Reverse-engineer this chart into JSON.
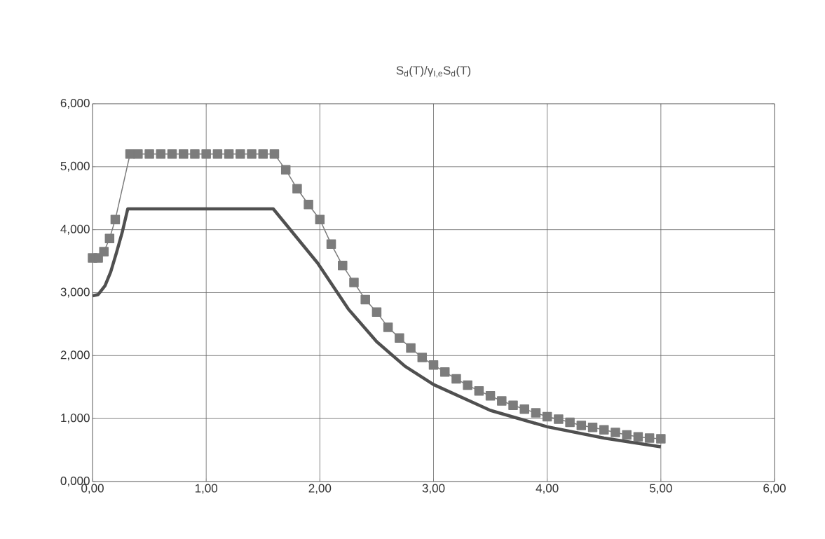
{
  "chart_data": {
    "type": "line",
    "title": "S$_{d}$(T)/γ$_{I,e}$S$_{d}$(T)",
    "xlim": [
      0,
      6
    ],
    "ylim": [
      0,
      6
    ],
    "xticks": [
      {
        "value": 0,
        "label": "0,00"
      },
      {
        "value": 1,
        "label": "1,00"
      },
      {
        "value": 2,
        "label": "2,00"
      },
      {
        "value": 3,
        "label": "3,00"
      },
      {
        "value": 4,
        "label": "4,00"
      },
      {
        "value": 5,
        "label": "5,00"
      },
      {
        "value": 6,
        "label": "6,00"
      }
    ],
    "yticks": [
      {
        "value": 0,
        "label": "0,000"
      },
      {
        "value": 1,
        "label": "1,000"
      },
      {
        "value": 2,
        "label": "2,000"
      },
      {
        "value": 3,
        "label": "3,000"
      },
      {
        "value": 4,
        "label": "4,000"
      },
      {
        "value": 5,
        "label": "5,000"
      },
      {
        "value": 6,
        "label": "6,000"
      }
    ],
    "grid": true,
    "series": [
      {
        "color": "#7c7c7c",
        "marker": "square",
        "x": [
          0,
          0.05,
          0.1,
          0.15,
          0.2,
          0.33,
          0.4,
          0.5,
          0.6,
          0.7,
          0.8,
          0.9,
          1.0,
          1.1,
          1.2,
          1.3,
          1.4,
          1.5,
          1.6,
          1.7,
          1.8,
          1.9,
          2.0,
          2.1,
          2.2,
          2.3,
          2.4,
          2.5,
          2.6,
          2.7,
          2.8,
          2.9,
          3.0,
          3.1,
          3.2,
          3.3,
          3.4,
          3.5,
          3.6,
          3.7,
          3.8,
          3.9,
          4.0,
          4.1,
          4.2,
          4.3,
          4.4,
          4.5,
          4.6,
          4.7,
          4.8,
          4.9,
          5.0
        ],
        "values": [
          3.55,
          3.55,
          3.65,
          3.86,
          4.16,
          5.2,
          5.2,
          5.2,
          5.2,
          5.2,
          5.2,
          5.2,
          5.2,
          5.2,
          5.2,
          5.2,
          5.2,
          5.2,
          5.2,
          4.95,
          4.65,
          4.4,
          4.16,
          3.77,
          3.43,
          3.16,
          2.89,
          2.69,
          2.45,
          2.28,
          2.12,
          1.97,
          1.85,
          1.74,
          1.63,
          1.53,
          1.44,
          1.36,
          1.28,
          1.21,
          1.15,
          1.09,
          1.03,
          0.99,
          0.94,
          0.89,
          0.86,
          0.82,
          0.78,
          0.74,
          0.71,
          0.69,
          0.68
        ]
      },
      {
        "color": "#505050",
        "marker": "none",
        "x": [
          0,
          0.05,
          0.11,
          0.16,
          0.21,
          0.26,
          0.31,
          1.59,
          1.98,
          2.25,
          2.5,
          2.75,
          3.0,
          3.5,
          4.0,
          4.5,
          5.0
        ],
        "values": [
          2.95,
          2.97,
          3.11,
          3.33,
          3.63,
          3.95,
          4.33,
          4.33,
          3.47,
          2.74,
          2.22,
          1.83,
          1.54,
          1.13,
          0.87,
          0.69,
          0.55
        ]
      }
    ]
  }
}
